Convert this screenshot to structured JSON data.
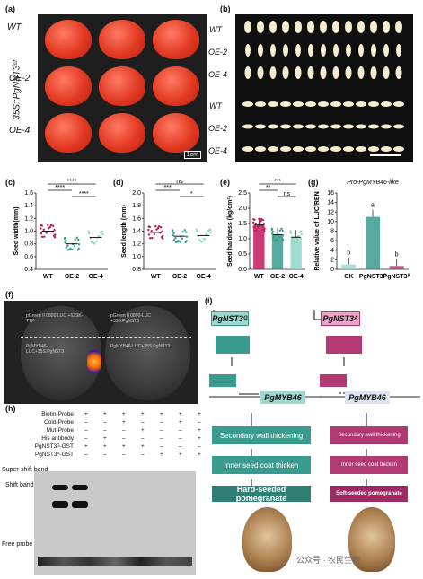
{
  "panel_labels": {
    "a": "(a)",
    "b": "(b)",
    "c": "(c)",
    "d": "(d)",
    "e": "(e)",
    "f": "(f)",
    "g": "(g)",
    "h": "(h)",
    "i": "(i)"
  },
  "construct_label": "35S::PgNST3ˢᶠ",
  "rows": [
    "WT",
    "OE-2",
    "OE-4"
  ],
  "scale_bar": "1cm",
  "charts": {
    "c": {
      "ylabel": "Seed width(mm)",
      "yticks": [
        "0.4",
        "0.6",
        "0.8",
        "1.0",
        "1.2",
        "1.4",
        "1.6"
      ],
      "cats": [
        "WT",
        "OE-2",
        "OE-4"
      ],
      "sig": [
        "****",
        "****",
        "****"
      ]
    },
    "d": {
      "ylabel": "Seed length (mm)",
      "yticks": [
        "0.8",
        "1.0",
        "1.2",
        "1.4",
        "1.6",
        "1.8",
        "2.0"
      ],
      "cats": [
        "WT",
        "OE-2",
        "OE-4"
      ],
      "sig": [
        "ns",
        "***",
        "*"
      ]
    },
    "e": {
      "ylabel": "Seed hardness (kg/cm²)",
      "yticks": [
        "0.0",
        "0.5",
        "1.0",
        "1.5",
        "2.0",
        "2.5"
      ],
      "cats": [
        "WT",
        "OE-2",
        "OE-4"
      ],
      "sig": [
        "***",
        "**",
        "ns"
      ]
    },
    "g": {
      "title": "Pro-PgMYB46-like",
      "ylabel": "Relative value of LUC/REN",
      "yticks": [
        "0",
        "2",
        "4",
        "6",
        "8",
        "10",
        "12",
        "14",
        "16"
      ],
      "cats": [
        "CK",
        "PgNST3ᴳ",
        "PgNST3ᴬ"
      ],
      "letters": [
        "b",
        "a",
        "b"
      ]
    }
  },
  "chart_data": [
    {
      "type": "bar",
      "title": "",
      "categories": [
        "WT",
        "OE-2",
        "OE-4"
      ],
      "values": [
        1.0,
        0.8,
        0.9
      ],
      "ylabel": "Seed width(mm)",
      "ylim": [
        0.4,
        1.6
      ]
    },
    {
      "type": "bar",
      "title": "",
      "categories": [
        "WT",
        "OE-2",
        "OE-4"
      ],
      "values": [
        1.38,
        1.32,
        1.33
      ],
      "ylabel": "Seed length (mm)",
      "ylim": [
        0.8,
        2.0
      ]
    },
    {
      "type": "bar",
      "title": "",
      "categories": [
        "WT",
        "OE-2",
        "OE-4"
      ],
      "values": [
        1.45,
        1.13,
        1.05
      ],
      "ylabel": "Seed hardness (kg/cm²)",
      "ylim": [
        0,
        2.5
      ]
    },
    {
      "type": "bar",
      "title": "Pro-PgMYB46-like",
      "categories": [
        "CK",
        "PgNST3ᴳ",
        "PgNST3ᴬ"
      ],
      "values": [
        1.0,
        11.0,
        0.7
      ],
      "ylabel": "Relative value of LUC/REN",
      "ylim": [
        0,
        16
      ]
    }
  ],
  "panel_f": {
    "left_top": "pGreen II 0800-LUC +62SK-TTP",
    "left_mid": "PgMYB46-LUC+35S:PgNST3",
    "right_top": "pGreen II 0800-LUC +35S:PgNST3",
    "right_mid": "PgMYB46-LUC+35S:PgNST3"
  },
  "panel_h": {
    "rows": [
      {
        "label": "Biotin-Probe",
        "vals": [
          "+",
          "+",
          "+",
          "+",
          "+",
          "+",
          "+"
        ]
      },
      {
        "label": "Cold-Probe",
        "vals": [
          "–",
          "–",
          "+",
          "–",
          "–",
          "+",
          "–"
        ]
      },
      {
        "label": "Mut-Probe",
        "vals": [
          "–",
          "–",
          "–",
          "+",
          "–",
          "–",
          "+"
        ]
      },
      {
        "label": "His antibody",
        "vals": [
          "–",
          "+",
          "–",
          "–",
          "–",
          "–",
          "+"
        ]
      },
      {
        "label": "PgNST3ᴳ-GST",
        "vals": [
          "+",
          "+",
          "+",
          "+",
          "–",
          "–",
          "–"
        ]
      },
      {
        "label": "PgNST3ᴬ-GST",
        "vals": [
          "–",
          "–",
          "–",
          "–",
          "+",
          "+",
          "+"
        ]
      }
    ],
    "super_shift": "Super-shift band",
    "shift": "Shift band",
    "free": "Free probe"
  },
  "panel_i": {
    "gene_g": "PgNST3ᴳ",
    "gene_a": "PgNST3ᴬ",
    "target": "PgMYB46",
    "left_steps": [
      "Secondary wall thickening",
      "Inner seed coat thicken",
      "Hard-seeded pomegranate"
    ],
    "right_steps": [
      "Secondary wall thickening",
      "Inner seed coat thicken",
      "Soft-seeded pomegranate"
    ]
  },
  "watermark": "公众号 · 农民生物"
}
